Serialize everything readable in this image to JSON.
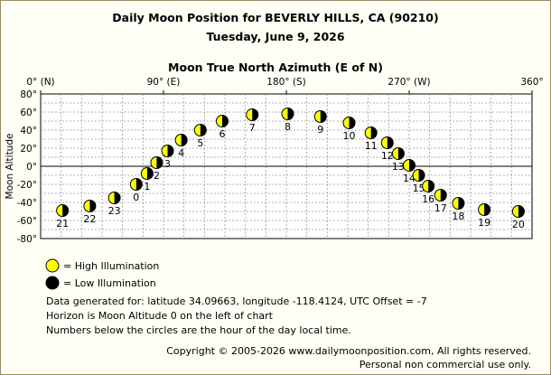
{
  "title": "Daily Moon Position for BEVERLY HILLS, CA (90210)",
  "subtitle": "Tuesday, June 9, 2026",
  "chart_data": {
    "type": "scatter",
    "title": "Daily Moon Position for BEVERLY HILLS, CA (90210)",
    "subtitle": "Tuesday, June 9, 2026",
    "xlabel": "Moon True North Azimuth (E of N)",
    "ylabel": "Moon Altitude",
    "xlim": [
      0,
      360
    ],
    "ylim": [
      -80,
      80
    ],
    "x_ticks": [
      {
        "value": 0,
        "label": "0° (N)"
      },
      {
        "value": 90,
        "label": "90° (E)"
      },
      {
        "value": 180,
        "label": "180° (S)"
      },
      {
        "value": 270,
        "label": "270° (W)"
      },
      {
        "value": 360,
        "label": "360°"
      }
    ],
    "y_ticks": [
      {
        "value": 80,
        "label": "80°"
      },
      {
        "value": 60,
        "label": "60°"
      },
      {
        "value": 40,
        "label": "40°"
      },
      {
        "value": 20,
        "label": "20°"
      },
      {
        "value": 0,
        "label": "0°"
      },
      {
        "value": -20,
        "label": "-20°"
      },
      {
        "value": -40,
        "label": "-40°"
      },
      {
        "value": -60,
        "label": "-60°"
      },
      {
        "value": -80,
        "label": "-80°"
      }
    ],
    "grid": true,
    "horizon_altitude": 0,
    "series": [
      {
        "name": "Low Illumination",
        "points": [
          {
            "hour": "0",
            "azimuth": 70,
            "altitude": -20
          },
          {
            "hour": "1",
            "azimuth": 78,
            "altitude": -8
          },
          {
            "hour": "2",
            "azimuth": 85,
            "altitude": 4
          },
          {
            "hour": "3",
            "azimuth": 93,
            "altitude": 17
          },
          {
            "hour": "4",
            "azimuth": 103,
            "altitude": 29
          },
          {
            "hour": "5",
            "azimuth": 117,
            "altitude": 40
          },
          {
            "hour": "6",
            "azimuth": 133,
            "altitude": 50
          },
          {
            "hour": "7",
            "azimuth": 155,
            "altitude": 57
          },
          {
            "hour": "8",
            "azimuth": 181,
            "altitude": 58
          },
          {
            "hour": "9",
            "azimuth": 205,
            "altitude": 55
          },
          {
            "hour": "10",
            "azimuth": 226,
            "altitude": 48
          },
          {
            "hour": "11",
            "azimuth": 242,
            "altitude": 37
          },
          {
            "hour": "12",
            "azimuth": 254,
            "altitude": 26
          },
          {
            "hour": "13",
            "azimuth": 262,
            "altitude": 14
          },
          {
            "hour": "14",
            "azimuth": 270,
            "altitude": 1
          },
          {
            "hour": "15",
            "azimuth": 277,
            "altitude": -10
          },
          {
            "hour": "16",
            "azimuth": 284,
            "altitude": -22
          },
          {
            "hour": "17",
            "azimuth": 293,
            "altitude": -32
          },
          {
            "hour": "18",
            "azimuth": 306,
            "altitude": -41
          },
          {
            "hour": "19",
            "azimuth": 325,
            "altitude": -48
          },
          {
            "hour": "20",
            "azimuth": 350,
            "altitude": -50
          },
          {
            "hour": "21",
            "azimuth": 16,
            "altitude": -49
          },
          {
            "hour": "22",
            "azimuth": 36,
            "altitude": -44
          },
          {
            "hour": "23",
            "azimuth": 54,
            "altitude": -35
          }
        ]
      }
    ]
  },
  "legend": {
    "high": "= High Illumination",
    "low": "= Low Illumination",
    "high_color": "#ffff00",
    "low_color": "#000000"
  },
  "info": {
    "line1": "Data generated for: latitude 34.09663, longitude -118.4124, UTC Offset = -7",
    "line2": "Horizon is Moon Altitude 0 on the left of chart",
    "line3": "Numbers below the circles are the hour of the day local time."
  },
  "copyright": {
    "line1": "Copyright © 2005-2026 www.dailymoonposition.com, All rights reserved.",
    "line2": "Personal non commercial use only."
  }
}
